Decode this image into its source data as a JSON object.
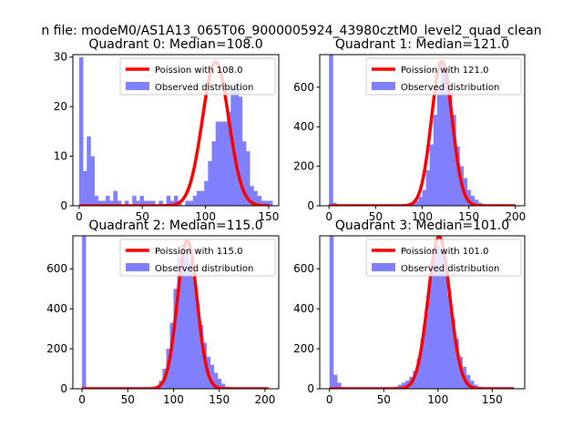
{
  "suptitle": "n file: modeM0/AS1A13_065T06_9000005924_43980cztM0_level2_quad_clean",
  "colors": {
    "hist": "#8080ff",
    "curve": "#ff0000",
    "axis": "#000000"
  },
  "chart_data": [
    {
      "type": "bar",
      "title": "Quadrant 0: Median=108.0",
      "xlim": [
        -5,
        158
      ],
      "ylim": [
        0,
        30.5
      ],
      "xticks": [
        0,
        50,
        100,
        150
      ],
      "yticks": [
        0,
        10,
        20,
        30
      ],
      "bin_width": 3,
      "hist_x": [
        0,
        3,
        6,
        9,
        12,
        15,
        18,
        21,
        24,
        27,
        30,
        33,
        36,
        39,
        42,
        45,
        48,
        51,
        54,
        57,
        60,
        63,
        66,
        69,
        72,
        75,
        78,
        81,
        84,
        87,
        90,
        93,
        96,
        99,
        102,
        105,
        108,
        111,
        114,
        117,
        120,
        123,
        126,
        129,
        132,
        135,
        138,
        141,
        144,
        147,
        150
      ],
      "hist_y": [
        30,
        7,
        14,
        10,
        2,
        1,
        1,
        2,
        1,
        3,
        1,
        0,
        1,
        0,
        2,
        1,
        2,
        1,
        1,
        1,
        0,
        1,
        0,
        2,
        1,
        2,
        1,
        0,
        1,
        1,
        2,
        3,
        3,
        5,
        9,
        13,
        17,
        17,
        17,
        19,
        24,
        25,
        22,
        13,
        11,
        4,
        3,
        2,
        1,
        1,
        1
      ],
      "curve": {
        "lambda": 108.0,
        "peak": 29.0,
        "xrange": [
          0,
          151
        ]
      },
      "legend": {
        "curve": "Poission with 108.0",
        "hist": "Observed distribution",
        "position": "upper-right"
      }
    },
    {
      "type": "bar",
      "title": "Quadrant 1: Median=121.0",
      "xlim": [
        -10,
        210
      ],
      "ylim": [
        0,
        765
      ],
      "xticks": [
        0,
        50,
        100,
        150,
        200
      ],
      "yticks": [
        0,
        200,
        400,
        600
      ],
      "bin_width": 4,
      "hist_x": [
        0,
        4,
        8,
        12,
        16,
        20,
        24,
        28,
        32,
        36,
        40,
        44,
        48,
        52,
        56,
        60,
        64,
        68,
        72,
        76,
        80,
        84,
        88,
        92,
        96,
        100,
        104,
        108,
        112,
        116,
        120,
        124,
        128,
        132,
        136,
        140,
        144,
        148,
        152,
        156,
        160,
        164,
        168,
        172,
        176,
        180,
        184,
        188,
        192,
        196
      ],
      "hist_y": [
        765,
        15,
        3,
        0,
        0,
        0,
        0,
        0,
        0,
        0,
        0,
        0,
        0,
        0,
        0,
        0,
        0,
        0,
        0,
        0,
        0,
        5,
        15,
        25,
        45,
        80,
        180,
        310,
        460,
        600,
        720,
        700,
        570,
        460,
        300,
        200,
        140,
        80,
        50,
        30,
        15,
        8,
        4,
        2,
        0,
        0,
        0,
        0,
        0,
        0
      ],
      "curve": {
        "lambda": 121.0,
        "peak": 733,
        "xrange": [
          0,
          200
        ]
      },
      "legend": {
        "curve": "Poission with 121.0",
        "hist": "Observed distribution",
        "position": "upper-right"
      }
    },
    {
      "type": "bar",
      "title": "Quadrant 2: Median=115.0",
      "xlim": [
        -10,
        215
      ],
      "ylim": [
        0,
        765
      ],
      "xticks": [
        0,
        50,
        100,
        150,
        200
      ],
      "yticks": [
        0,
        200,
        400,
        600
      ],
      "bin_width": 4,
      "hist_x": [
        0,
        4,
        8,
        12,
        16,
        20,
        24,
        28,
        32,
        36,
        40,
        44,
        48,
        52,
        56,
        60,
        64,
        68,
        72,
        76,
        80,
        84,
        88,
        92,
        96,
        100,
        104,
        108,
        112,
        116,
        120,
        124,
        128,
        132,
        136,
        140,
        144,
        148,
        152,
        156,
        160,
        164,
        168,
        172,
        176,
        180,
        184,
        188,
        192,
        196,
        200
      ],
      "hist_y": [
        765,
        0,
        0,
        0,
        0,
        0,
        0,
        0,
        0,
        0,
        0,
        0,
        0,
        0,
        0,
        0,
        0,
        0,
        0,
        5,
        10,
        40,
        100,
        200,
        330,
        500,
        660,
        720,
        700,
        640,
        560,
        430,
        320,
        230,
        160,
        120,
        80,
        50,
        25,
        10,
        5,
        2,
        0,
        0,
        0,
        0,
        0,
        0,
        0,
        0,
        0
      ],
      "curve": {
        "lambda": 115.0,
        "peak": 741,
        "xrange": [
          0,
          204
        ]
      },
      "legend": {
        "curve": "Poission with 115.0",
        "hist": "Observed distribution",
        "position": "upper-right"
      }
    },
    {
      "type": "bar",
      "title": "Quadrant 3: Median=101.0",
      "xlim": [
        -9,
        180
      ],
      "ylim": [
        0,
        765
      ],
      "xticks": [
        0,
        50,
        100,
        150
      ],
      "yticks": [
        0,
        200,
        400,
        600
      ],
      "bin_width": 3.5,
      "hist_x": [
        0,
        3.5,
        7,
        10.5,
        14,
        17.5,
        21,
        24.5,
        28,
        31.5,
        35,
        38.5,
        42,
        45.5,
        49,
        52.5,
        56,
        59.5,
        63,
        66.5,
        70,
        73.5,
        77,
        80.5,
        84,
        87.5,
        91,
        94.5,
        98,
        101.5,
        105,
        108.5,
        112,
        115.5,
        119,
        122.5,
        126,
        129.5,
        133,
        136.5,
        140,
        143.5,
        147,
        150.5,
        154,
        157.5,
        161,
        164.5,
        168
      ],
      "hist_y": [
        765,
        70,
        30,
        5,
        0,
        0,
        0,
        0,
        0,
        0,
        0,
        0,
        0,
        0,
        0,
        0,
        5,
        10,
        20,
        30,
        40,
        60,
        90,
        150,
        250,
        380,
        540,
        660,
        720,
        690,
        600,
        470,
        350,
        250,
        160,
        110,
        70,
        40,
        20,
        10,
        5,
        3,
        0,
        0,
        0,
        0,
        0,
        0,
        0
      ],
      "curve": {
        "lambda": 101.0,
        "peak": 760,
        "xrange": [
          0,
          170
        ]
      },
      "legend": {
        "curve": "Poission with 101.0",
        "hist": "Observed distribution",
        "position": "upper-right"
      }
    }
  ]
}
